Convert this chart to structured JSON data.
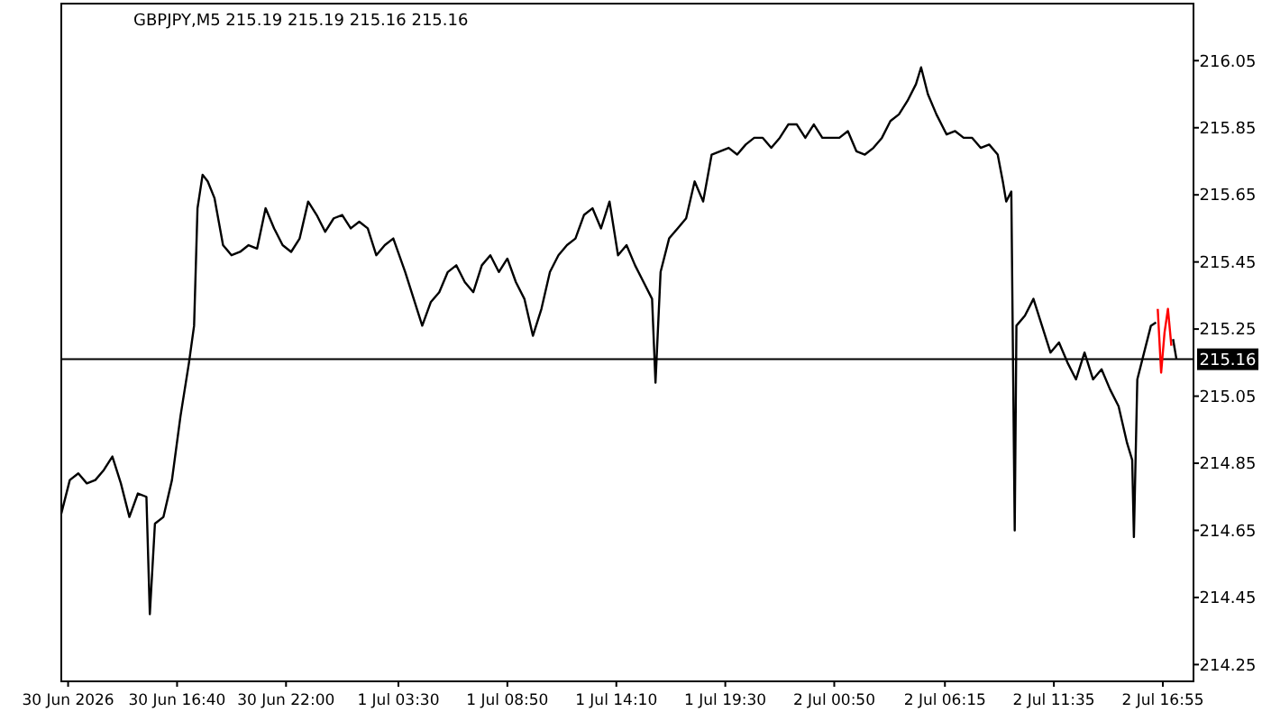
{
  "chart_data": {
    "type": "line",
    "title": "GBPJPY,M5  215.19 215.19 215.16 215.16",
    "xlim": [
      "2026-06-30T11:00",
      "2026-07-02T18:25"
    ],
    "ylim": [
      214.2,
      216.22
    ],
    "xticks": [
      {
        "value": "2026-06-30T11:20",
        "label": "30 Jun 2026"
      },
      {
        "value": "2026-06-30T16:40",
        "label": "30 Jun 16:40"
      },
      {
        "value": "2026-06-30T22:00",
        "label": "30 Jun 22:00"
      },
      {
        "value": "2026-07-01T03:30",
        "label": "1 Jul 03:30"
      },
      {
        "value": "2026-07-01T08:50",
        "label": "1 Jul 08:50"
      },
      {
        "value": "2026-07-01T14:10",
        "label": "1 Jul 14:10"
      },
      {
        "value": "2026-07-01T19:30",
        "label": "1 Jul 19:30"
      },
      {
        "value": "2026-07-02T00:50",
        "label": "2 Jul 00:50"
      },
      {
        "value": "2026-07-02T06:15",
        "label": "2 Jul 06:15"
      },
      {
        "value": "2026-07-02T11:35",
        "label": "2 Jul 11:35"
      },
      {
        "value": "2026-07-02T16:55",
        "label": "2 Jul 16:55"
      }
    ],
    "yticks": [
      214.25,
      214.45,
      214.65,
      214.85,
      215.05,
      215.25,
      215.45,
      215.65,
      215.85,
      216.05
    ],
    "ref_lines": [
      {
        "axis": "y",
        "value": 215.16,
        "label": "215.16",
        "color": "#000000"
      }
    ],
    "marker": "none",
    "line_style": "solid",
    "grid": false,
    "series": [
      {
        "color": "#000000",
        "x": [
          "2026-06-30T11:00",
          "2026-06-30T11:25",
          "2026-06-30T11:50",
          "2026-06-30T12:15",
          "2026-06-30T12:40",
          "2026-06-30T13:05",
          "2026-06-30T13:30",
          "2026-06-30T13:55",
          "2026-06-30T14:20",
          "2026-06-30T14:45",
          "2026-06-30T15:10",
          "2026-06-30T15:20",
          "2026-06-30T15:35",
          "2026-06-30T16:00",
          "2026-06-30T16:25",
          "2026-06-30T16:50",
          "2026-06-30T17:15",
          "2026-06-30T17:30",
          "2026-06-30T17:40",
          "2026-06-30T17:55",
          "2026-06-30T18:10",
          "2026-06-30T18:30",
          "2026-06-30T18:55",
          "2026-06-30T19:20",
          "2026-06-30T19:45",
          "2026-06-30T20:10",
          "2026-06-30T20:35",
          "2026-06-30T21:00",
          "2026-06-30T21:25",
          "2026-06-30T21:50",
          "2026-06-30T22:15",
          "2026-06-30T22:40",
          "2026-06-30T23:05",
          "2026-06-30T23:30",
          "2026-06-30T23:55",
          "2026-07-01T00:20",
          "2026-07-01T00:45",
          "2026-07-01T01:10",
          "2026-07-01T01:35",
          "2026-07-01T02:00",
          "2026-07-01T02:25",
          "2026-07-01T02:50",
          "2026-07-01T03:15",
          "2026-07-01T03:50",
          "2026-07-01T04:15",
          "2026-07-01T04:40",
          "2026-07-01T05:05",
          "2026-07-01T05:30",
          "2026-07-01T05:55",
          "2026-07-01T06:20",
          "2026-07-01T06:45",
          "2026-07-01T07:10",
          "2026-07-01T07:35",
          "2026-07-01T08:00",
          "2026-07-01T08:25",
          "2026-07-01T08:50",
          "2026-07-01T09:15",
          "2026-07-01T09:40",
          "2026-07-01T10:05",
          "2026-07-01T10:30",
          "2026-07-01T10:55",
          "2026-07-01T11:20",
          "2026-07-01T11:45",
          "2026-07-01T12:10",
          "2026-07-01T12:35",
          "2026-07-01T13:00",
          "2026-07-01T13:25",
          "2026-07-01T13:50",
          "2026-07-01T14:15",
          "2026-07-01T14:40",
          "2026-07-01T15:05",
          "2026-07-01T15:30",
          "2026-07-01T15:55",
          "2026-07-01T16:05",
          "2026-07-01T16:20",
          "2026-07-01T16:45",
          "2026-07-01T17:10",
          "2026-07-01T17:35",
          "2026-07-01T18:00",
          "2026-07-01T18:25",
          "2026-07-01T18:50",
          "2026-07-01T19:15",
          "2026-07-01T19:40",
          "2026-07-01T20:05",
          "2026-07-01T20:30",
          "2026-07-01T20:55",
          "2026-07-01T21:20",
          "2026-07-01T21:45",
          "2026-07-01T22:10",
          "2026-07-01T22:35",
          "2026-07-01T23:00",
          "2026-07-01T23:25",
          "2026-07-01T23:50",
          "2026-07-02T00:15",
          "2026-07-02T00:40",
          "2026-07-02T01:05",
          "2026-07-02T01:30",
          "2026-07-02T01:55",
          "2026-07-02T02:20",
          "2026-07-02T02:45",
          "2026-07-02T03:10",
          "2026-07-02T03:35",
          "2026-07-02T04:00",
          "2026-07-02T04:25",
          "2026-07-02T04:50",
          "2026-07-02T05:05",
          "2026-07-02T05:25",
          "2026-07-02T05:50",
          "2026-07-02T06:20",
          "2026-07-02T06:45",
          "2026-07-02T07:10",
          "2026-07-02T07:35",
          "2026-07-02T08:00",
          "2026-07-02T08:25",
          "2026-07-02T08:50",
          "2026-07-02T09:05",
          "2026-07-02T09:15",
          "2026-07-02T09:30",
          "2026-07-02T09:40",
          "2026-07-02T09:45",
          "2026-07-02T10:10",
          "2026-07-02T10:35",
          "2026-07-02T11:00",
          "2026-07-02T11:25",
          "2026-07-02T11:50",
          "2026-07-02T12:15",
          "2026-07-02T12:40",
          "2026-07-02T13:05",
          "2026-07-02T13:30",
          "2026-07-02T13:55",
          "2026-07-02T14:20",
          "2026-07-02T14:45",
          "2026-07-02T15:10",
          "2026-07-02T15:25",
          "2026-07-02T15:30",
          "2026-07-02T15:40",
          "2026-07-02T16:00",
          "2026-07-02T16:20",
          "2026-07-02T16:35"
        ],
        "values": [
          214.7,
          214.8,
          214.82,
          214.79,
          214.8,
          214.83,
          214.87,
          214.79,
          214.69,
          214.76,
          214.75,
          214.4,
          214.67,
          214.69,
          214.8,
          214.99,
          215.15,
          215.26,
          215.61,
          215.71,
          215.69,
          215.64,
          215.5,
          215.47,
          215.48,
          215.5,
          215.49,
          215.61,
          215.55,
          215.5,
          215.48,
          215.52,
          215.63,
          215.59,
          215.54,
          215.58,
          215.59,
          215.55,
          215.57,
          215.55,
          215.47,
          215.5,
          215.52,
          215.42,
          215.34,
          215.26,
          215.33,
          215.36,
          215.42,
          215.44,
          215.39,
          215.36,
          215.44,
          215.47,
          215.42,
          215.46,
          215.39,
          215.34,
          215.23,
          215.31,
          215.42,
          215.47,
          215.5,
          215.52,
          215.59,
          215.61,
          215.55,
          215.63,
          215.47,
          215.5,
          215.44,
          215.39,
          215.34,
          215.09,
          215.42,
          215.52,
          215.55,
          215.58,
          215.69,
          215.63,
          215.77,
          215.78,
          215.79,
          215.77,
          215.8,
          215.82,
          215.82,
          215.79,
          215.82,
          215.86,
          215.86,
          215.82,
          215.86,
          215.82,
          215.82,
          215.82,
          215.84,
          215.78,
          215.77,
          215.79,
          215.82,
          215.87,
          215.89,
          215.93,
          215.98,
          216.03,
          215.95,
          215.89,
          215.83,
          215.84,
          215.82,
          215.82,
          215.79,
          215.8,
          215.77,
          215.69,
          215.63,
          215.66,
          214.65,
          215.26,
          215.29,
          215.34,
          215.26,
          215.18,
          215.21,
          215.15,
          215.1,
          215.18,
          215.1,
          215.13,
          215.07,
          215.02,
          214.91,
          214.86,
          214.63,
          215.1,
          215.18,
          215.26,
          215.27
        ]
      },
      {
        "color": "#ff0000",
        "x": [
          "2026-07-02T16:40",
          "2026-07-02T16:50",
          "2026-07-02T17:00",
          "2026-07-02T17:10",
          "2026-07-02T17:20"
        ],
        "values": [
          215.31,
          215.12,
          215.24,
          215.31,
          215.2
        ]
      },
      {
        "color": "#000000",
        "x": [
          "2026-07-02T17:25",
          "2026-07-02T17:35"
        ],
        "values": [
          215.22,
          215.16
        ]
      }
    ]
  }
}
